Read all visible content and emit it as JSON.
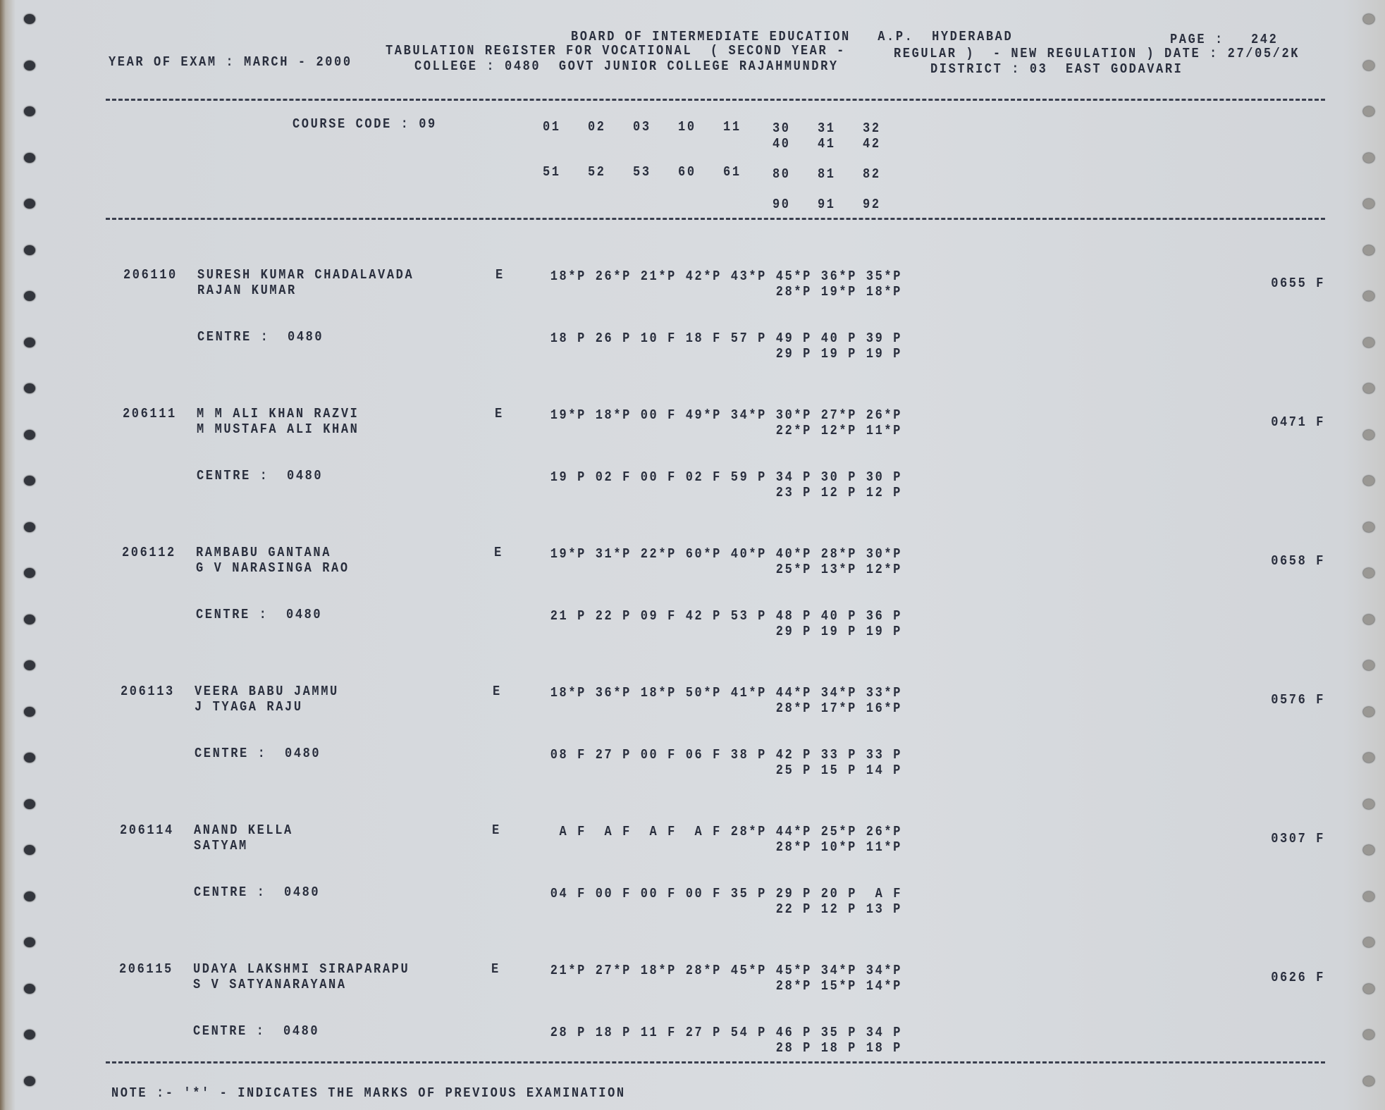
{
  "header": {
    "board": "BOARD OF INTERMEDIATE EDUCATION   A.P.  HYDERABAD",
    "page_label": "PAGE :",
    "page_number": "242",
    "register": "TABULATION REGISTER FOR VOCATIONAL  ( SECOND YEAR -",
    "regulation": "REGULAR )  - NEW REGULATION ) DATE : 27/05/2K",
    "year_of_exam": "YEAR OF EXAM : MARCH - 2000",
    "college": "COLLEGE : 0480  GOVT JUNIOR COLLEGE RAJAHMUNDRY",
    "district": "DISTRICT : 03  EAST GODAVARI"
  },
  "course": {
    "label": "COURSE CODE : 09",
    "codes_row1a": "01   02   03   10   11",
    "codes_row1b": "30   31   32",
    "codes_row1c": "40   41   42",
    "codes_row2a": "51   52   53   60   61",
    "codes_row2b": "80   81   82",
    "codes_row3": "90   91   92"
  },
  "students": [
    {
      "hall_ticket": "206110",
      "name": "SURESH KUMAR CHADALAVADA",
      "father": "RAJAN KUMAR",
      "medium": "E",
      "marks_1": "18*P 26*P 21*P 42*P 43*P 45*P 36*P 35*P",
      "marks_2": "28*P 19*P 18*P",
      "centre": "CENTRE :  0480",
      "centre_marks_1": "18 P 26 P 10 F 18 F 57 P 49 P 40 P 39 P",
      "centre_marks_2": "29 P 19 P 19 P",
      "total": "0655 F"
    },
    {
      "hall_ticket": "206111",
      "name": "M M ALI KHAN RAZVI",
      "father": "M MUSTAFA ALI KHAN",
      "medium": "E",
      "marks_1": "19*P 18*P 00 F 49*P 34*P 30*P 27*P 26*P",
      "marks_2": "22*P 12*P 11*P",
      "centre": "CENTRE :  0480",
      "centre_marks_1": "19 P 02 F 00 F 02 F 59 P 34 P 30 P 30 P",
      "centre_marks_2": "23 P 12 P 12 P",
      "total": "0471 F"
    },
    {
      "hall_ticket": "206112",
      "name": "RAMBABU GANTANA",
      "father": "G V NARASINGA RAO",
      "medium": "E",
      "marks_1": "19*P 31*P 22*P 60*P 40*P 40*P 28*P 30*P",
      "marks_2": "25*P 13*P 12*P",
      "centre": "CENTRE :  0480",
      "centre_marks_1": "21 P 22 P 09 F 42 P 53 P 48 P 40 P 36 P",
      "centre_marks_2": "29 P 19 P 19 P",
      "total": "0658 F"
    },
    {
      "hall_ticket": "206113",
      "name": "VEERA BABU JAMMU",
      "father": "J TYAGA RAJU",
      "medium": "E",
      "marks_1": "18*P 36*P 18*P 50*P 41*P 44*P 34*P 33*P",
      "marks_2": "28*P 17*P 16*P",
      "centre": "CENTRE :  0480",
      "centre_marks_1": "08 F 27 P 00 F 06 F 38 P 42 P 33 P 33 P",
      "centre_marks_2": "25 P 15 P 14 P",
      "total": "0576 F"
    },
    {
      "hall_ticket": "206114",
      "name": "ANAND KELLA",
      "father": "SATYAM",
      "medium": "E",
      "marks_1": " A F  A F  A F  A F 28*P 44*P 25*P 26*P",
      "marks_2": "28*P 10*P 11*P",
      "centre": "CENTRE :  0480",
      "centre_marks_1": "04 F 00 F 00 F 00 F 35 P 29 P 20 P  A F",
      "centre_marks_2": "22 P 12 P 13 P",
      "total": "0307 F"
    },
    {
      "hall_ticket": "206115",
      "name": "UDAYA LAKSHMI SIRAPARAPU",
      "father": "S V SATYANARAYANA",
      "medium": "E",
      "marks_1": "21*P 27*P 18*P 28*P 45*P 45*P 34*P 34*P",
      "marks_2": "28*P 15*P 14*P",
      "centre": "CENTRE :  0480",
      "centre_marks_1": "28 P 18 P 11 F 27 P 54 P 46 P 35 P 34 P",
      "centre_marks_2": "28 P 18 P 18 P",
      "total": "0626 F"
    }
  ],
  "footer": {
    "note": "NOTE :- '*' - INDICATES THE MARKS OF PREVIOUS EXAMINATION"
  }
}
